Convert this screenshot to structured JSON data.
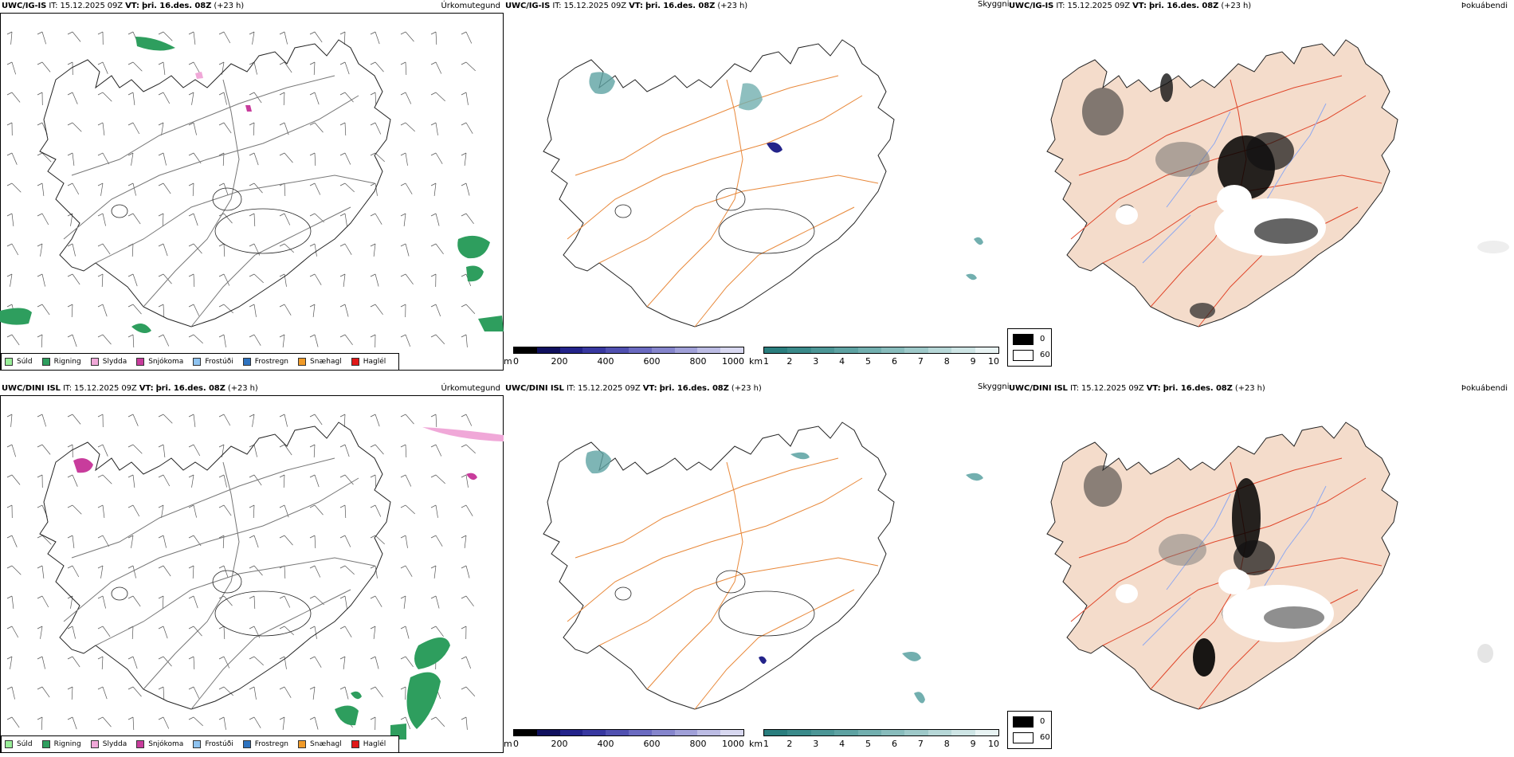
{
  "rows": [
    {
      "model": "UWC/IG-IS",
      "it": "IT: 15.12.2025 09Z",
      "vt_label": "VT:",
      "vt_value": "þri. 16.des. 08Z",
      "lead": "(+23 h)"
    },
    {
      "model": "UWC/DINI ISL",
      "it": "IT: 15.12.2025 09Z",
      "vt_label": "VT:",
      "vt_value": "þri. 16.des. 08Z",
      "lead": "(+23 h)"
    }
  ],
  "panels": {
    "precip": {
      "variable": "Úrkomutegund"
    },
    "visibility": {
      "variable": "Skyggni"
    },
    "fog": {
      "variable": "Þokuábendi"
    }
  },
  "precip_legend": [
    {
      "label": "Súld",
      "color": "#99ee99"
    },
    {
      "label": "Rigning",
      "color": "#2e9e5e"
    },
    {
      "label": "Slydda",
      "color": "#f0a8d8"
    },
    {
      "label": "Snjókoma",
      "color": "#c83c9c"
    },
    {
      "label": "Frostúði",
      "color": "#8ec3f0"
    },
    {
      "label": "Frostregn",
      "color": "#2e73c0"
    },
    {
      "label": "Snæhagl",
      "color": "#f09a28"
    },
    {
      "label": "Haglél",
      "color": "#e01818"
    }
  ],
  "ceiling_bar": {
    "unit": "m",
    "ticks": [
      "0",
      "200",
      "400",
      "600",
      "800",
      "1000"
    ],
    "colors": [
      "#000000",
      "#10105e",
      "#23238a",
      "#3838a0",
      "#5050b0",
      "#6a6ac0",
      "#8585cc",
      "#a0a0d8",
      "#bcbce4",
      "#d8d8f0"
    ]
  },
  "visibility_bar": {
    "unit": "km",
    "ticks": [
      "1",
      "2",
      "3",
      "4",
      "5",
      "6",
      "7",
      "8",
      "9",
      "10"
    ],
    "colors": [
      "#2a7e7e",
      "#3a8a8a",
      "#4c9696",
      "#5ea2a2",
      "#72afaf",
      "#88bcbc",
      "#9ec9c9",
      "#b6d7d7",
      "#cee5e5",
      "#e8f3f3"
    ]
  },
  "fog_legend": [
    {
      "label": "0",
      "color": "#000000"
    },
    {
      "label": "60",
      "color": "#ffffff"
    }
  ],
  "colors": {
    "road_orange": "#e8883a",
    "road_red": "#e0462a",
    "land_beige": "#f4dccb",
    "river_blue": "#8ea8f0",
    "rain_green": "#2e9e5e"
  }
}
